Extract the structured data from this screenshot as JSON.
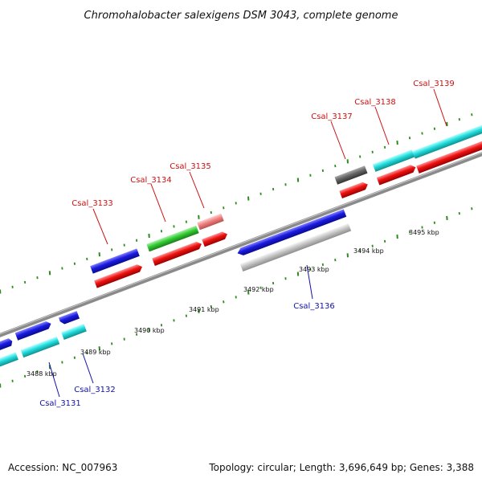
{
  "title": "Chromohalobacter salexigens DSM 3043, complete genome",
  "accession": "Accession: NC_007963",
  "summary": "Topology: circular; Length: 3,696,649 bp; Genes: 3,388",
  "colors": {
    "backbone": "#8a8a8a",
    "tick": "#2e8b1e",
    "forward_label": "#cc1111",
    "reverse_label": "#1111aa",
    "blue": "#1a1adf",
    "red": "#ee1111",
    "cyan": "#22dddd",
    "green": "#33cc33",
    "pink": "#f08080",
    "gray": "#666666",
    "light_gray": "#c4c4c4"
  },
  "scale": {
    "kbp_labels": [
      {
        "kbp": 3488,
        "text": "3488 kbp"
      },
      {
        "kbp": 3489,
        "text": "3489 kbp"
      },
      {
        "kbp": 3490,
        "text": "3490 kbp"
      },
      {
        "kbp": 3491,
        "text": "3491 kbp"
      },
      {
        "kbp": 3492,
        "text": "3492 kbp"
      },
      {
        "kbp": 3493,
        "text": "3493 kbp"
      },
      {
        "kbp": 3494,
        "text": "3494 kbp"
      },
      {
        "kbp": 3495,
        "text": "3495 kbp"
      }
    ]
  },
  "genes": [
    {
      "label": "Csal_3131",
      "strand": "reverse"
    },
    {
      "label": "Csal_3132",
      "strand": "reverse"
    },
    {
      "label": "Csal_3133",
      "strand": "forward"
    },
    {
      "label": "Csal_3134",
      "strand": "forward"
    },
    {
      "label": "Csal_3135",
      "strand": "forward"
    },
    {
      "label": "Csal_3136",
      "strand": "reverse"
    },
    {
      "label": "Csal_3137",
      "strand": "forward"
    },
    {
      "label": "Csal_3138",
      "strand": "forward"
    },
    {
      "label": "Csal_3139",
      "strand": "forward"
    }
  ]
}
